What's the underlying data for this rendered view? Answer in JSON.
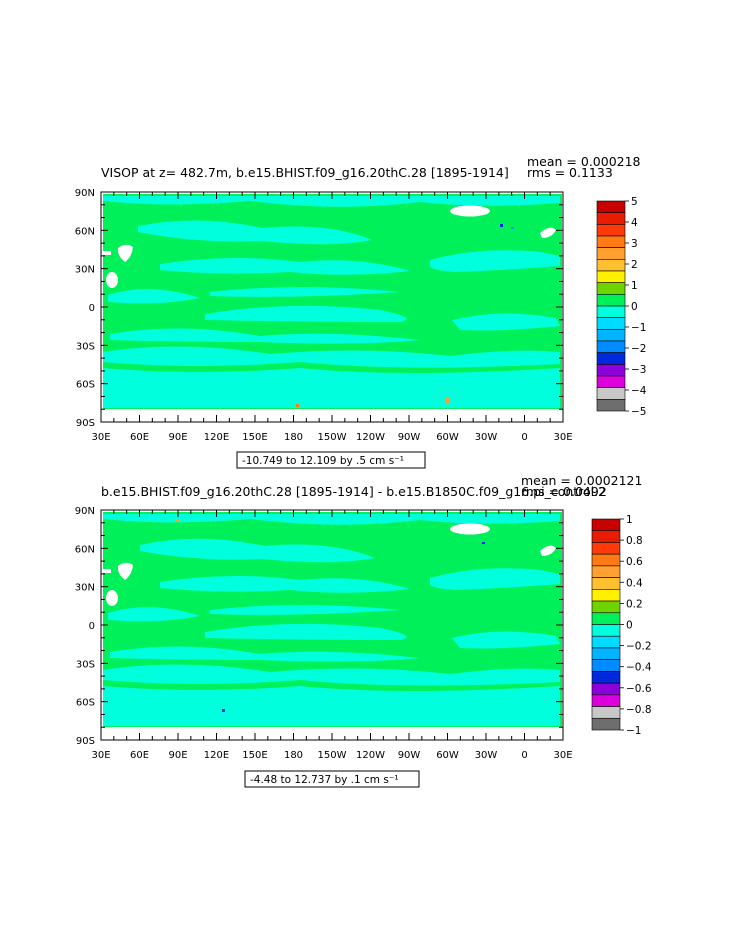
{
  "chart_data": [
    {
      "type": "heatmap",
      "title": "VISOP at z= 482.7m, b.e15.BHIST.f09_g16.20thC.28 [1895-1914]",
      "stats": {
        "mean": "mean = 0.000218",
        "rms": "rms = 0.1133"
      },
      "x_ticks": [
        "30E",
        "60E",
        "90E",
        "120E",
        "150E",
        "180",
        "150W",
        "120W",
        "90W",
        "60W",
        "30W",
        "0",
        "30E"
      ],
      "y_ticks": [
        "90N",
        "60N",
        "30N",
        "0",
        "30S",
        "60S",
        "90S"
      ],
      "xlim": [
        30,
        390
      ],
      "ylim": [
        -90,
        90
      ],
      "contour_info": "-10.749 to 12.109 by .5 cm s⁻¹",
      "colorbar": {
        "labels": [
          "5",
          "4",
          "3",
          "2",
          "1",
          "0",
          "-1",
          "-2",
          "-3",
          "-4",
          "-5"
        ],
        "colors": [
          "#c80000",
          "#e81c00",
          "#ff3a0a",
          "#ff7a14",
          "#ffa030",
          "#ffc030",
          "#fff000",
          "#6ed400",
          "#00f05a",
          "#00ffdc",
          "#00dcff",
          "#00b4ff",
          "#008cff",
          "#0028dc",
          "#8c00dc",
          "#dc00dc",
          "#c8c8c8",
          "#6e6e6e"
        ]
      },
      "dominant_fields": {
        "ocean_majority": "#00f05a",
        "ocean_bands": "#00ffdc"
      }
    },
    {
      "type": "heatmap",
      "title": "b.e15.BHIST.f09_g16.20thC.28 [1895-1914] - b.e15.B1850C.f09_g16.pi_control.2",
      "stats": {
        "mean": "mean = 0.0002121",
        "rms": "rms = 0.0492"
      },
      "x_ticks": [
        "30E",
        "60E",
        "90E",
        "120E",
        "150E",
        "180",
        "150W",
        "120W",
        "90W",
        "60W",
        "30W",
        "0",
        "30E"
      ],
      "y_ticks": [
        "90N",
        "60N",
        "30N",
        "0",
        "30S",
        "60S",
        "90S"
      ],
      "xlim": [
        30,
        390
      ],
      "ylim": [
        -90,
        90
      ],
      "contour_info": "-4.48 to 12.737 by .1 cm s⁻¹",
      "colorbar": {
        "labels": [
          "1",
          "0.8",
          "0.6",
          "0.4",
          "0.2",
          "0",
          "-0.2",
          "-0.4",
          "-0.6",
          "-0.8",
          "-1"
        ],
        "colors": [
          "#c80000",
          "#e81c00",
          "#ff3a0a",
          "#ff7a14",
          "#ffa030",
          "#ffc030",
          "#fff000",
          "#6ed400",
          "#00f05a",
          "#00ffdc",
          "#00dcff",
          "#00b4ff",
          "#008cff",
          "#0028dc",
          "#8c00dc",
          "#dc00dc",
          "#c8c8c8",
          "#6e6e6e"
        ]
      },
      "dominant_fields": {
        "ocean_majority": "#00f05a",
        "ocean_bands": "#00ffdc"
      }
    }
  ]
}
